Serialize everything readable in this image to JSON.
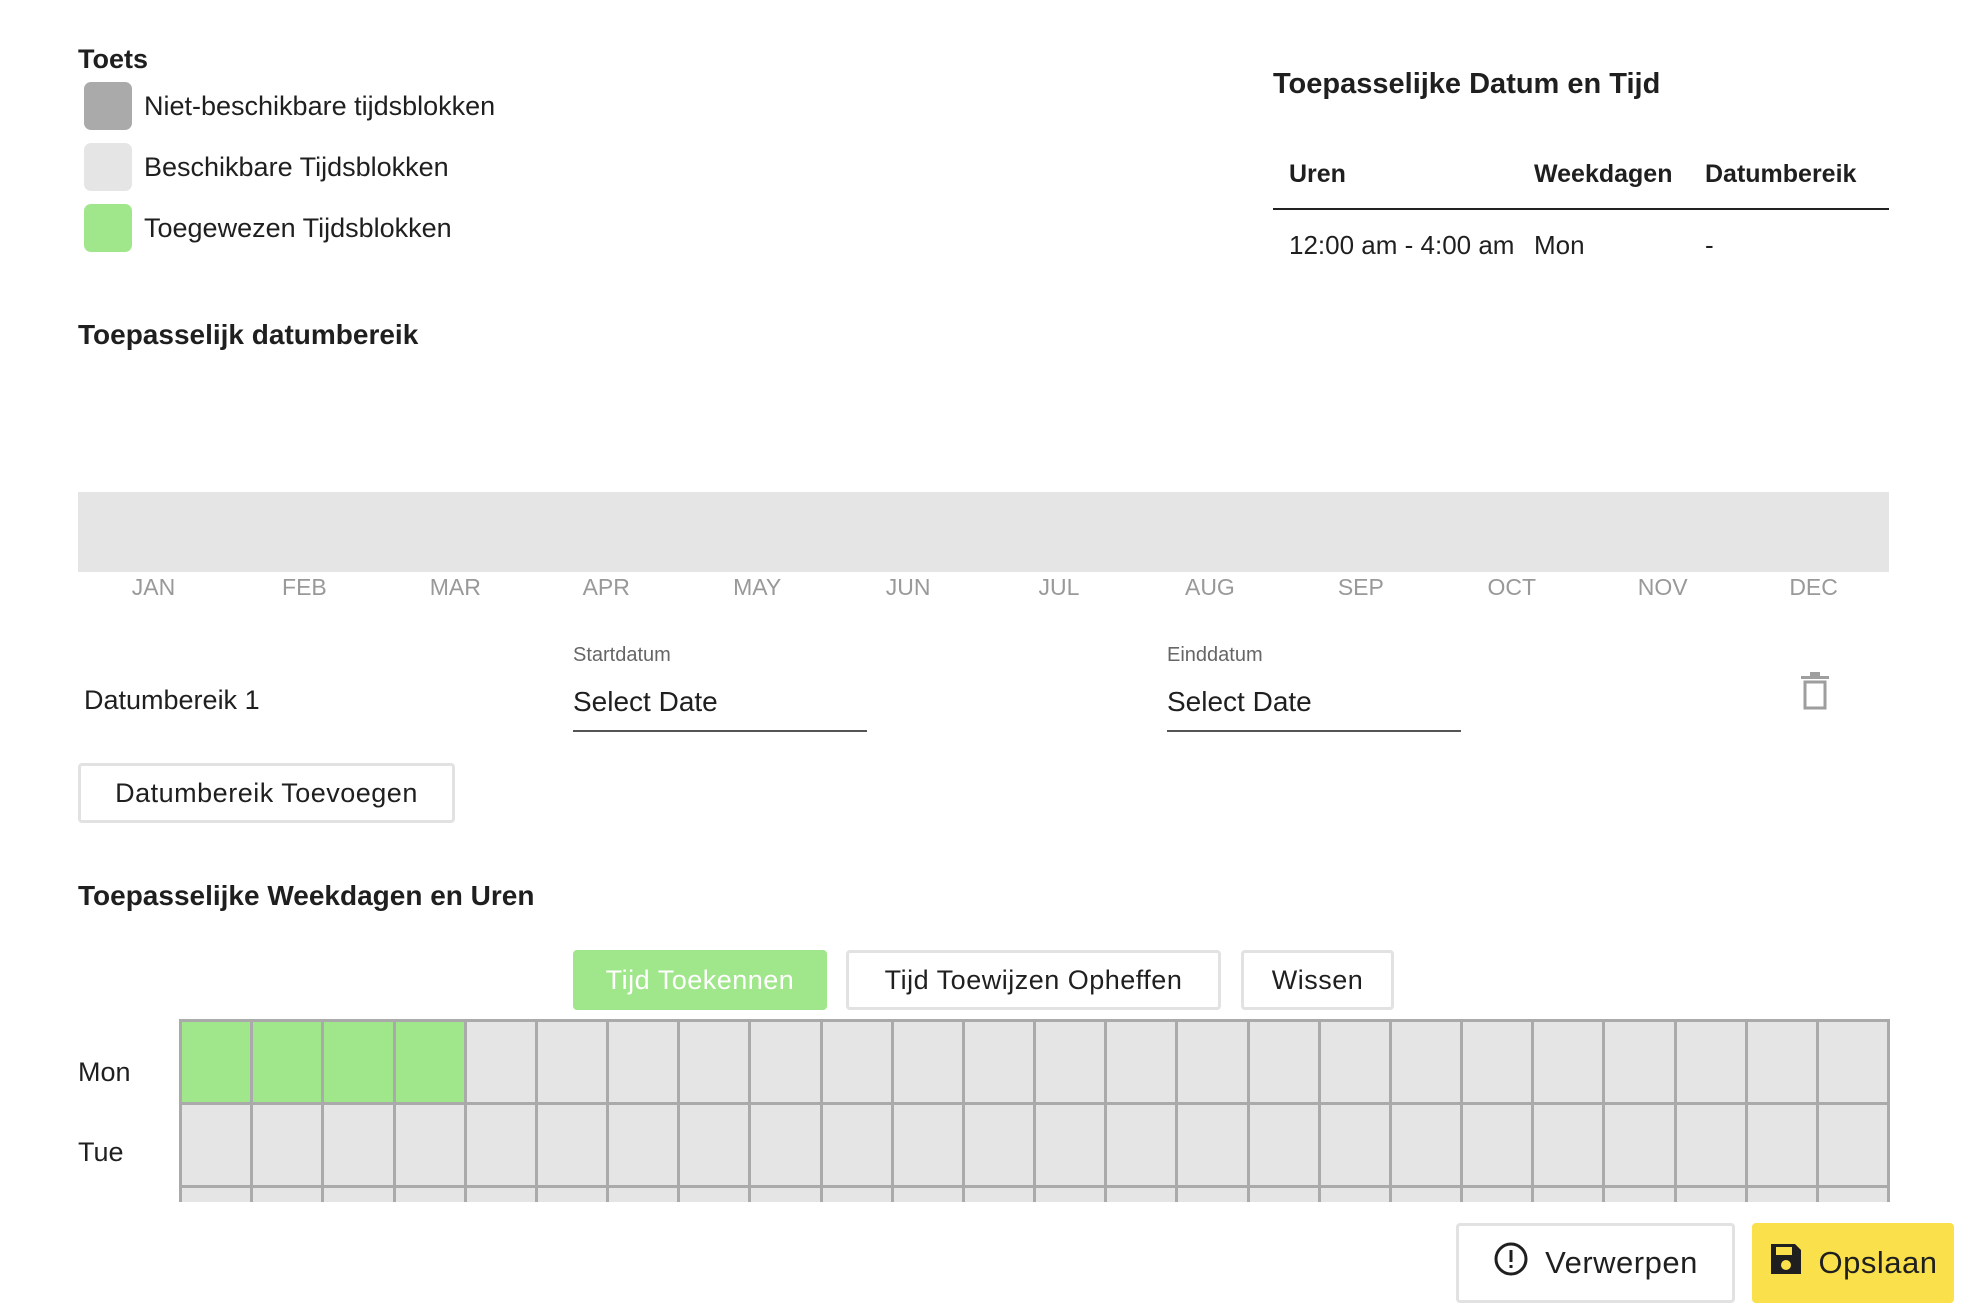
{
  "legend": {
    "title": "Toets",
    "items": [
      {
        "label": "Niet-beschikbare tijdsblokken",
        "color": "#aaaaaa"
      },
      {
        "label": "Beschikbare Tijdsblokken",
        "color": "#e5e5e5"
      },
      {
        "label": "Toegewezen Tijdsblokken",
        "color": "#a0e68a"
      }
    ]
  },
  "applicable": {
    "title": "Toepasselijke Datum en Tijd",
    "headers": [
      "Uren",
      "Weekdagen",
      "Datumbereik"
    ],
    "rows": [
      {
        "hours": "12:00 am - 4:00 am",
        "weekdays": "Mon",
        "range": "-"
      }
    ]
  },
  "date_range": {
    "title": "Toepasselijk datumbereik",
    "months": [
      "JAN",
      "FEB",
      "MAR",
      "APR",
      "MAY",
      "JUN",
      "JUL",
      "AUG",
      "SEP",
      "OCT",
      "NOV",
      "DEC"
    ],
    "ranges": [
      {
        "label": "Datumbereik 1",
        "start_caption": "Startdatum",
        "start_value": "Select Date",
        "end_caption": "Einddatum",
        "end_value": "Select Date",
        "delete_icon": "trash-icon"
      }
    ],
    "add_button": "Datumbereik Toevoegen"
  },
  "weekdays": {
    "title": "Toepasselijke Weekdagen en Uren",
    "buttons": {
      "assign": "Tijd Toekennen",
      "unassign": "Tijd Toewijzen Opheffen",
      "clear": "Wissen"
    },
    "days": [
      "Mon",
      "Tue"
    ],
    "hours_per_day": 24,
    "assigned": {
      "Mon": [
        0,
        1,
        2,
        3
      ],
      "Tue": []
    }
  },
  "footer": {
    "discard": {
      "label": "Verwerpen",
      "icon": "alert-circle-icon"
    },
    "save": {
      "label": "Opslaan",
      "icon": "floppy-disk-icon"
    }
  },
  "colors": {
    "accent_green": "#a0e68a",
    "save_yellow": "#fae04a",
    "grid_border": "#aaaaaa"
  }
}
